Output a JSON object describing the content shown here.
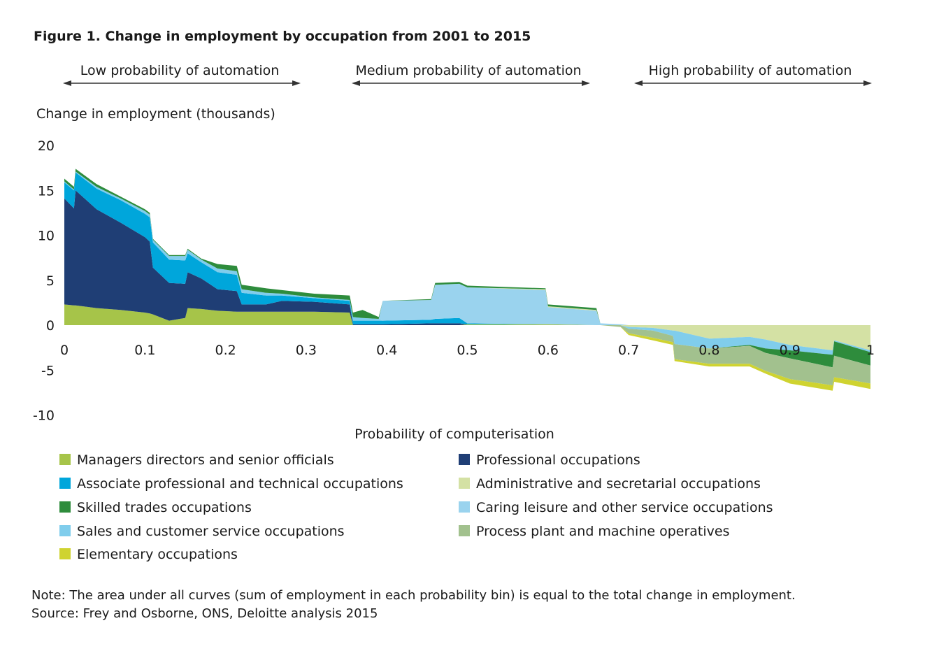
{
  "chart_data": {
    "type": "area",
    "title": "Figure 1. Change in employment by occupation from 2001 to 2015",
    "bands": [
      {
        "label": "Low probability of automation",
        "range": [
          0,
          0.3
        ]
      },
      {
        "label": "Medium probability of automation",
        "range": [
          0.35,
          0.65
        ]
      },
      {
        "label": "High probability of automation",
        "range": [
          0.7,
          1.0
        ]
      }
    ],
    "ylabel": "Change in employment (thousands)",
    "xlabel": "Probability of computerisation",
    "xlim": [
      0,
      1
    ],
    "ylim": [
      -10,
      20
    ],
    "xticks": [
      "0",
      "0.1",
      "0.2",
      "0.3",
      "0.4",
      "0.5",
      "0.6",
      "0.7",
      "0.8",
      "0.9",
      "1"
    ],
    "yticks": [
      "20",
      "15",
      "10",
      "5",
      "0",
      "-5",
      "-10"
    ],
    "grid": false,
    "legend_position": "bottom",
    "series": [
      {
        "key": "managers",
        "name": "Managers directors and senior officials",
        "color": "#a6c449"
      },
      {
        "key": "professional",
        "name": "Professional occupations",
        "color": "#1f3e75"
      },
      {
        "key": "associate",
        "name": "Associate professional and technical occupations",
        "color": "#00a6db"
      },
      {
        "key": "admin",
        "name": "Administrative and secretarial occupations",
        "color": "#d4e1a4"
      },
      {
        "key": "skilled",
        "name": "Skilled trades occupations",
        "color": "#2e8c3c"
      },
      {
        "key": "caring",
        "name": "Caring leisure and other service occupations",
        "color": "#9ad3ee"
      },
      {
        "key": "sales",
        "name": "Sales and customer service occupations",
        "color": "#80cdec"
      },
      {
        "key": "process",
        "name": "Process plant and machine operatives",
        "color": "#a2c18e"
      },
      {
        "key": "elementary",
        "name": "Elementary occupations",
        "color": "#cfd330"
      }
    ],
    "stack_order_positive": [
      "managers",
      "professional",
      "associate",
      "sales",
      "caring",
      "admin",
      "skilled"
    ],
    "stack_order_negative": [
      "admin",
      "sales",
      "skilled",
      "process",
      "elementary"
    ],
    "points": [
      {
        "x": 0.0,
        "managers": 2.3,
        "professional": 11.8,
        "associate": 1.8,
        "sales": 0.1,
        "skilled": 0.3
      },
      {
        "x": 0.012,
        "managers": 2.2,
        "professional": 10.8,
        "associate": 2.0,
        "sales": 0.1,
        "skilled": 0.3
      },
      {
        "x": 0.014,
        "managers": 2.2,
        "professional": 12.8,
        "associate": 2.0,
        "sales": 0.1,
        "skilled": 0.3
      },
      {
        "x": 0.04,
        "managers": 1.9,
        "professional": 11.0,
        "associate": 2.3,
        "sales": 0.2,
        "skilled": 0.3
      },
      {
        "x": 0.07,
        "managers": 1.7,
        "professional": 9.7,
        "associate": 2.5,
        "sales": 0.2,
        "skilled": 0.2
      },
      {
        "x": 0.1,
        "managers": 1.4,
        "professional": 8.4,
        "associate": 2.6,
        "sales": 0.3,
        "skilled": 0.2
      },
      {
        "x": 0.106,
        "managers": 1.3,
        "professional": 8.0,
        "associate": 2.7,
        "sales": 0.3,
        "skilled": 0.2
      },
      {
        "x": 0.11,
        "managers": 1.2,
        "professional": 5.2,
        "associate": 2.8,
        "sales": 0.3,
        "skilled": 0.1
      },
      {
        "x": 0.13,
        "managers": 0.5,
        "professional": 4.2,
        "associate": 2.6,
        "sales": 0.4,
        "skilled": 0.1
      },
      {
        "x": 0.15,
        "managers": 0.8,
        "professional": 3.8,
        "associate": 2.6,
        "sales": 0.5,
        "skilled": 0.1
      },
      {
        "x": 0.153,
        "managers": 1.9,
        "professional": 4.0,
        "associate": 2.1,
        "sales": 0.4,
        "skilled": 0.1
      },
      {
        "x": 0.17,
        "managers": 1.8,
        "professional": 3.4,
        "associate": 1.8,
        "sales": 0.3,
        "skilled": 0.1
      },
      {
        "x": 0.19,
        "managers": 1.6,
        "professional": 2.4,
        "associate": 1.9,
        "sales": 0.4,
        "skilled": 0.5
      },
      {
        "x": 0.214,
        "managers": 1.5,
        "professional": 2.3,
        "associate": 1.8,
        "sales": 0.4,
        "skilled": 0.6
      },
      {
        "x": 0.22,
        "managers": 1.5,
        "professional": 0.8,
        "associate": 1.3,
        "sales": 0.4,
        "skilled": 0.5
      },
      {
        "x": 0.25,
        "managers": 1.5,
        "professional": 0.8,
        "associate": 1.0,
        "sales": 0.3,
        "skilled": 0.5
      },
      {
        "x": 0.27,
        "managers": 1.5,
        "professional": 1.2,
        "associate": 0.6,
        "sales": 0.2,
        "skilled": 0.4
      },
      {
        "x": 0.31,
        "managers": 1.5,
        "professional": 1.1,
        "associate": 0.4,
        "sales": 0.1,
        "skilled": 0.4
      },
      {
        "x": 0.354,
        "managers": 1.4,
        "professional": 0.9,
        "associate": 0.4,
        "sales": 0.1,
        "skilled": 0.5
      },
      {
        "x": 0.358,
        "managers": 0.0,
        "professional": 0.1,
        "associate": 0.4,
        "sales": 0.4,
        "skilled": 0.5
      },
      {
        "x": 0.37,
        "managers": 0.0,
        "professional": 0.1,
        "associate": 0.4,
        "sales": 0.3,
        "skilled": 0.9
      },
      {
        "x": 0.39,
        "managers": 0.0,
        "professional": 0.1,
        "associate": 0.4,
        "sales": 0.2,
        "skilled": 0.2
      },
      {
        "x": 0.395,
        "professional": 0.1,
        "associate": 0.4,
        "caring": 2.2
      },
      {
        "x": 0.455,
        "professional": 0.2,
        "associate": 0.4,
        "caring": 2.2,
        "skilled": 0.1
      },
      {
        "x": 0.46,
        "professional": 0.2,
        "associate": 0.5,
        "caring": 3.8,
        "skilled": 0.2
      },
      {
        "x": 0.49,
        "professional": 0.2,
        "associate": 0.6,
        "caring": 3.8,
        "skilled": 0.2
      },
      {
        "x": 0.5,
        "managers": 0.1,
        "associate": 0.1,
        "caring": 4.0,
        "skilled": 0.2
      },
      {
        "x": 0.597,
        "managers": 0.1,
        "caring": 3.8,
        "admin": 0.1,
        "skilled": 0.1
      },
      {
        "x": 0.6,
        "managers": 0.1,
        "caring": 1.9,
        "admin": 0.1,
        "skilled": 0.2
      },
      {
        "x": 0.66,
        "managers": 0.0,
        "caring": 1.6,
        "admin": 0.1,
        "skilled": 0.2
      },
      {
        "x": 0.665,
        "caring": 0.2
      },
      {
        "x": 0.69,
        "caring": 0.1,
        "sales_neg": -0.2,
        "process": -0.2
      },
      {
        "x": 0.7,
        "admin": -0.2,
        "sales": -0.2,
        "process": -0.5,
        "elementary": -0.2
      },
      {
        "x": 0.73,
        "admin": -0.3,
        "sales": -0.3,
        "process": -0.8,
        "elementary": -0.3
      },
      {
        "x": 0.755,
        "admin": -0.6,
        "sales": -0.6,
        "process": -0.7,
        "elementary": -0.3
      },
      {
        "x": 0.757,
        "admin": -0.6,
        "sales": -1.5,
        "process": -1.7,
        "elementary": -0.2
      },
      {
        "x": 0.8,
        "admin": -1.5,
        "sales": -1.1,
        "process": -1.7,
        "elementary": -0.3
      },
      {
        "x": 0.85,
        "admin": -1.3,
        "sales": -0.9,
        "skilled": -0.1,
        "process": -2.0,
        "elementary": -0.3
      },
      {
        "x": 0.87,
        "admin": -1.6,
        "sales": -1.0,
        "skilled": -0.5,
        "process": -2.0,
        "elementary": -0.3
      },
      {
        "x": 0.9,
        "admin": -2.2,
        "sales": -0.6,
        "skilled": -0.9,
        "process": -2.3,
        "elementary": -0.5
      },
      {
        "x": 0.953,
        "admin": -2.8,
        "sales": -0.5,
        "skilled": -1.4,
        "process": -2.0,
        "elementary": -0.6
      },
      {
        "x": 0.955,
        "admin": -1.7,
        "sales": -0.1,
        "skilled": -1.6,
        "process": -2.4,
        "elementary": -0.5
      },
      {
        "x": 1.0,
        "admin": -2.8,
        "sales": -0.2,
        "skilled": -1.5,
        "process": -2.0,
        "elementary": -0.6
      }
    ],
    "note": "Note: The area under all curves (sum of employment in each probability bin) is equal to the total change in employment.",
    "source": "Source: Frey and Osborne, ONS, Deloitte analysis 2015"
  }
}
